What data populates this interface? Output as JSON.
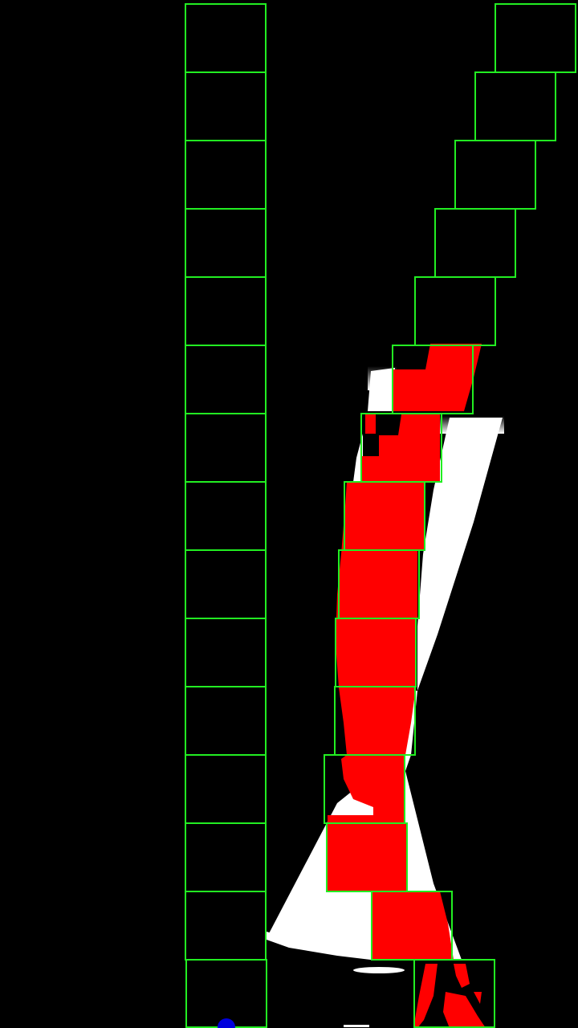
{
  "view": {
    "background_color": "#000000",
    "window_color": "#22ee22",
    "lane_pixel_color": "#ff0000",
    "binary_mask_color": "#ffffff",
    "base_marker_color": "#0000dd"
  },
  "left_lane": {
    "window_count": 15,
    "detected_pixels": false
  },
  "right_lane": {
    "window_count": 15,
    "detected_pixels": true
  }
}
